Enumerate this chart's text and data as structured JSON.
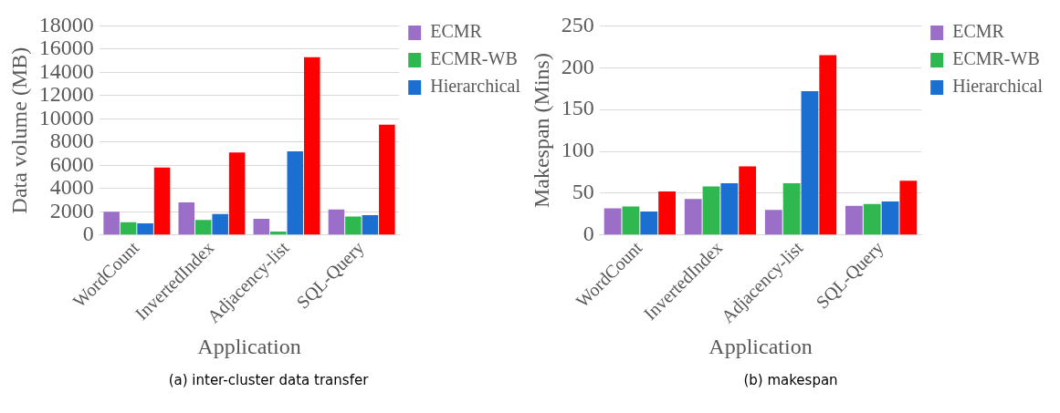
{
  "chart_data": [
    {
      "type": "bar",
      "xlabel": "Application",
      "ylabel": "Data volume (MB)",
      "categories": [
        "WordCount",
        "InvertedIndex",
        "Adjacency-list",
        "SQL-Query"
      ],
      "series": [
        {
          "name": "ECMR",
          "color": "#9b6fc8",
          "values": [
            2000,
            2800,
            1400,
            2200
          ]
        },
        {
          "name": "ECMR-WB",
          "color": "#2fb84f",
          "values": [
            1100,
            1300,
            300,
            1600
          ]
        },
        {
          "name": "Hierarchical",
          "color": "#1a6fd0",
          "values": [
            1000,
            1800,
            7200,
            1700
          ]
        },
        {
          "color": "#ff0000",
          "values": [
            5800,
            7100,
            15300,
            9500
          ]
        }
      ],
      "ylim": [
        0,
        18000
      ],
      "yticks": [
        0,
        2000,
        4000,
        6000,
        8000,
        10000,
        12000,
        14000,
        16000,
        18000
      ],
      "grid": "y",
      "legend": "top right",
      "annotations": [
        "(a) inter-cluster data transfer"
      ]
    },
    {
      "type": "bar",
      "xlabel": "Application",
      "ylabel": "Makespan (Mins)",
      "categories": [
        "WordCount",
        "InvertedIndex",
        "Adjacency-list",
        "SQL-Query"
      ],
      "series": [
        {
          "name": "ECMR",
          "color": "#9b6fc8",
          "values": [
            32,
            43,
            30,
            35
          ]
        },
        {
          "name": "ECMR-WB",
          "color": "#2fb84f",
          "values": [
            34,
            58,
            62,
            37
          ]
        },
        {
          "name": "Hierarchical",
          "color": "#1a6fd0",
          "values": [
            28,
            62,
            172,
            40
          ]
        },
        {
          "color": "#ff0000",
          "values": [
            52,
            82,
            215,
            65
          ]
        }
      ],
      "ylim": [
        0,
        250
      ],
      "yticks": [
        0,
        50,
        100,
        150,
        200,
        250
      ],
      "grid": "y",
      "legend": "top right",
      "annotations": [
        "(b) makespan"
      ]
    }
  ]
}
